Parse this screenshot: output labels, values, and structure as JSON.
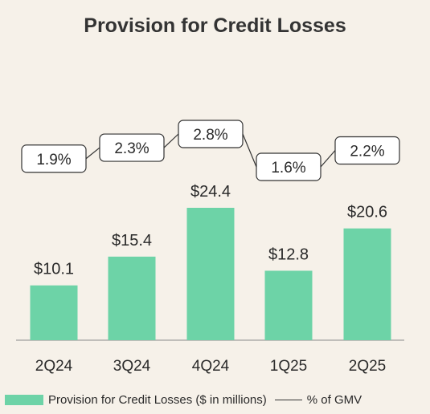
{
  "chart_data": {
    "type": "bar",
    "title": "Provision for Credit Losses",
    "categories": [
      "2Q24",
      "3Q24",
      "4Q24",
      "1Q25",
      "2Q25"
    ],
    "series": [
      {
        "name": "Provision for Credit Losses ($ in millions)",
        "type": "bar",
        "values": [
          10.1,
          15.4,
          24.4,
          12.8,
          20.6
        ],
        "labels": [
          "$10.1",
          "$15.4",
          "$24.4",
          "$12.8",
          "$20.6"
        ],
        "color": "#6dd3a7"
      },
      {
        "name": "% of GMV",
        "type": "line",
        "values": [
          1.9,
          2.3,
          2.8,
          1.6,
          2.2
        ],
        "labels": [
          "1.9%",
          "2.3%",
          "2.8%",
          "1.6%",
          "2.2%"
        ],
        "color": "#333333"
      }
    ],
    "ylim": [
      0,
      24.4
    ],
    "grid": false,
    "legend": "bottom"
  }
}
